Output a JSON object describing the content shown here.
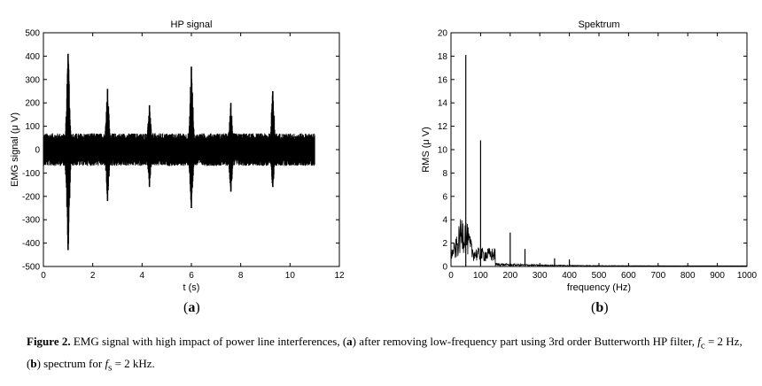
{
  "chart_data": [
    {
      "type": "line",
      "title": "HP signal",
      "xlabel": "t (s)",
      "ylabel": "EMG signal (μ V)",
      "xlim": [
        0,
        12
      ],
      "ylim": [
        -500,
        500
      ],
      "xticks": [
        "0",
        "2",
        "4",
        "6",
        "8",
        "10",
        "12"
      ],
      "yticks": [
        "-500",
        "-400",
        "-300",
        "-200",
        "-100",
        "0",
        "100",
        "200",
        "300",
        "400",
        "500"
      ],
      "series": [
        {
          "signal_duration_s": 11,
          "baseline_band_uV": [
            -70,
            70
          ],
          "bursts": [
            {
              "t": 1.0,
              "max": 410,
              "min": -430
            },
            {
              "t": 2.6,
              "max": 260,
              "min": -220
            },
            {
              "t": 4.3,
              "max": 190,
              "min": -160
            },
            {
              "t": 6.0,
              "max": 355,
              "min": -250
            },
            {
              "t": 7.6,
              "max": 200,
              "min": -180
            },
            {
              "t": 9.3,
              "max": 250,
              "min": -160
            }
          ]
        }
      ]
    },
    {
      "type": "line",
      "title": "Spektrum",
      "xlabel": "frequency (Hz)",
      "ylabel": "RMS (μ V)",
      "xlim": [
        0,
        1000
      ],
      "ylim": [
        0,
        20
      ],
      "xticks": [
        "0",
        "100",
        "200",
        "300",
        "400",
        "500",
        "600",
        "700",
        "800",
        "900",
        "1000"
      ],
      "yticks": [
        "0",
        "2",
        "4",
        "6",
        "8",
        "10",
        "12",
        "14",
        "16",
        "18",
        "20"
      ],
      "series": [
        {
          "peaks": [
            {
              "f": 50,
              "rms": 18.1
            },
            {
              "f": 100,
              "rms": 10.8
            },
            {
              "f": 200,
              "rms": 2.9
            },
            {
              "f": 250,
              "rms": 1.5
            },
            {
              "f": 350,
              "rms": 0.7
            },
            {
              "f": 400,
              "rms": 0.6
            }
          ],
          "low_band_hump": {
            "f_range": [
              0,
              150
            ],
            "max_rms": 4.6
          }
        }
      ]
    }
  ],
  "labels": {
    "a_open": "(",
    "a_letter": "a",
    "a_close": ")",
    "b_open": "(",
    "b_letter": "b",
    "b_close": ")"
  },
  "caption": {
    "label": "Figure 2.",
    "text1": " EMG signal with high impact of power line interferences, (",
    "a": "a",
    "text2": ") after removing low-frequency part using 3rd order Butterworth HP filter, ",
    "fc_sym": "f",
    "fc_sub": "c",
    "text3": " = 2 Hz, (",
    "b": "b",
    "text4": ") spectrum for ",
    "fs_sym": "f",
    "fs_sub": "s",
    "text5": " = 2 kHz."
  }
}
